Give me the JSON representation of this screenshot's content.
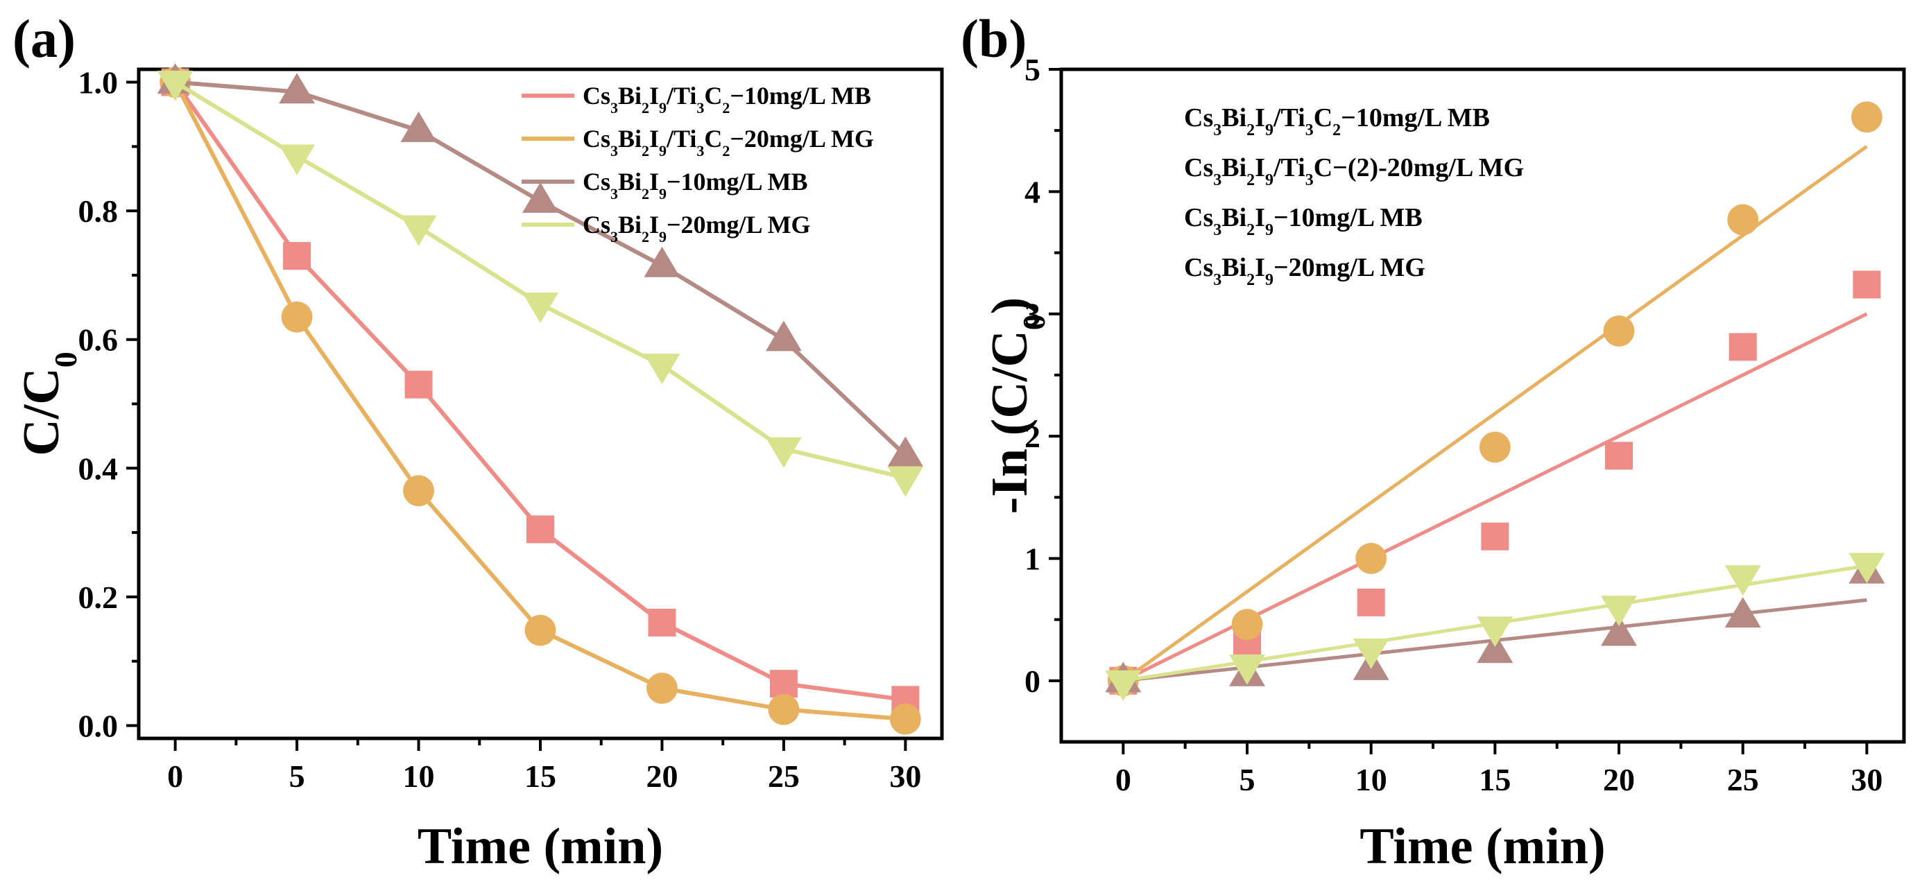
{
  "colors": {
    "pink": "#F08C88",
    "orange": "#E8B15F",
    "brown": "#B58A84",
    "lime": "#D9E28C"
  },
  "chart_data": [
    {
      "panel_label": "(a)",
      "type": "line",
      "xlabel": "Time (min)",
      "ylabel": "C/C0",
      "ylabel_main": "C/C",
      "ylabel_sub": "0",
      "xlim": [
        -1.5,
        31.5
      ],
      "ylim": [
        -0.02,
        1.02
      ],
      "xticks": [
        0,
        5,
        10,
        15,
        20,
        25,
        30
      ],
      "yticks": [
        0.0,
        0.2,
        0.4,
        0.6,
        0.8,
        1.0
      ],
      "ytick_labels": [
        "0.0",
        "0.2",
        "0.4",
        "0.6",
        "0.8",
        "1.0"
      ],
      "x": [
        0,
        5,
        10,
        15,
        20,
        25,
        30
      ],
      "legend_position": "top-right",
      "series": [
        {
          "name": "Cs3Bi2I9/Ti3C2−10mg/L MB",
          "legend_parts": [
            [
              "Cs",
              "n"
            ],
            [
              "3",
              "s"
            ],
            [
              "Bi",
              "n"
            ],
            [
              "2",
              "s"
            ],
            [
              "I",
              "n"
            ],
            [
              "9",
              "s"
            ],
            [
              "/Ti",
              "n"
            ],
            [
              "3",
              "s"
            ],
            [
              "C",
              "n"
            ],
            [
              "2",
              "s"
            ],
            [
              "−10mg/L MB",
              "n"
            ]
          ],
          "marker": "square",
          "color_key": "pink",
          "values": [
            1.0,
            0.73,
            0.53,
            0.305,
            0.16,
            0.065,
            0.04
          ]
        },
        {
          "name": "Cs3Bi2I9/Ti3C2−20mg/L MG",
          "legend_parts": [
            [
              "Cs",
              "n"
            ],
            [
              "3",
              "s"
            ],
            [
              "Bi",
              "n"
            ],
            [
              "2",
              "s"
            ],
            [
              "I",
              "n"
            ],
            [
              "9",
              "s"
            ],
            [
              "/Ti",
              "n"
            ],
            [
              "3",
              "s"
            ],
            [
              "C",
              "n"
            ],
            [
              "2",
              "s"
            ],
            [
              "−20mg/L MG",
              "n"
            ]
          ],
          "marker": "circle",
          "color_key": "orange",
          "values": [
            1.0,
            0.635,
            0.365,
            0.148,
            0.058,
            0.025,
            0.01
          ]
        },
        {
          "name": "Cs3Bi2I9−10mg/L MB",
          "legend_parts": [
            [
              "Cs",
              "n"
            ],
            [
              "3",
              "s"
            ],
            [
              "Bi",
              "n"
            ],
            [
              "2",
              "s"
            ],
            [
              "I",
              "n"
            ],
            [
              "9",
              "s"
            ],
            [
              "−10mg/L MB",
              "n"
            ]
          ],
          "marker": "triangle-up",
          "color_key": "brown",
          "values": [
            1.0,
            0.985,
            0.925,
            0.815,
            0.715,
            0.6,
            0.42
          ]
        },
        {
          "name": "Cs3Bi2I9−20mg/L MG",
          "legend_parts": [
            [
              "Cs",
              "n"
            ],
            [
              "3",
              "s"
            ],
            [
              "Bi",
              "n"
            ],
            [
              "2",
              "s"
            ],
            [
              "I",
              "n"
            ],
            [
              "9",
              "s"
            ],
            [
              "−20mg/L MG",
              "n"
            ]
          ],
          "marker": "triangle-down",
          "color_key": "lime",
          "values": [
            1.0,
            0.885,
            0.775,
            0.655,
            0.56,
            0.43,
            0.385
          ]
        }
      ]
    },
    {
      "panel_label": "(b)",
      "type": "scatter",
      "xlabel": "Time (min)",
      "ylabel": "-In (C/C0)",
      "ylabel_main": "-In (C/C",
      "ylabel_sub": "0",
      "ylabel_close": ")",
      "xlim": [
        -2.5,
        31.5
      ],
      "ylim": [
        -0.5,
        5.0
      ],
      "xticks": [
        0,
        5,
        10,
        15,
        20,
        25,
        30
      ],
      "yticks": [
        0,
        1,
        2,
        3,
        4,
        5
      ],
      "ytick_labels": [
        "0",
        "1",
        "2",
        "3",
        "4",
        "5"
      ],
      "x": [
        0,
        5,
        10,
        15,
        20,
        25,
        30
      ],
      "legend_position": "top-left",
      "series": [
        {
          "name": "Cs3Bi2I9/Ti3C2−10mg/L MB",
          "legend_parts": [
            [
              "Cs",
              "n"
            ],
            [
              "3",
              "s"
            ],
            [
              "Bi",
              "n"
            ],
            [
              "2",
              "s"
            ],
            [
              "I",
              "n"
            ],
            [
              "9",
              "s"
            ],
            [
              "/Ti",
              "n"
            ],
            [
              "3",
              "s"
            ],
            [
              "C",
              "n"
            ],
            [
              "2",
              "s"
            ],
            [
              "−10mg/L MB",
              "n"
            ]
          ],
          "marker": "square",
          "color_key": "pink",
          "values": [
            0.0,
            0.32,
            0.64,
            1.18,
            1.84,
            2.73,
            3.24
          ],
          "fit": [
            0.0,
            3.0
          ]
        },
        {
          "name": "Cs3Bi2I9/Ti3C−(2)-20mg/L MG",
          "legend_parts": [
            [
              "Cs",
              "n"
            ],
            [
              "3",
              "s"
            ],
            [
              "Bi",
              "n"
            ],
            [
              "2",
              "s"
            ],
            [
              "I",
              "n"
            ],
            [
              "9",
              "s"
            ],
            [
              "/Ti",
              "n"
            ],
            [
              "3",
              "s"
            ],
            [
              "C−(2)-20mg/L MG",
              "n"
            ]
          ],
          "marker": "circle",
          "color_key": "orange",
          "values": [
            0.0,
            0.46,
            1.0,
            1.91,
            2.86,
            3.77,
            4.61
          ],
          "fit": [
            0.0,
            4.37
          ]
        },
        {
          "name": "Cs3Bi2I9−10mg/L MB",
          "legend_parts": [
            [
              "Cs",
              "n"
            ],
            [
              "3",
              "s"
            ],
            [
              "Bi",
              "n"
            ],
            [
              "2",
              "s"
            ],
            [
              "I",
              "n"
            ],
            [
              "9",
              "s"
            ],
            [
              "−10mg/L MB",
              "n"
            ]
          ],
          "marker": "triangle-up",
          "color_key": "brown",
          "values": [
            0.0,
            0.05,
            0.1,
            0.24,
            0.38,
            0.53,
            0.89
          ],
          "fit": [
            0.0,
            0.66
          ]
        },
        {
          "name": "Cs3Bi2I9−20mg/L MG",
          "legend_parts": [
            [
              "Cs",
              "n"
            ],
            [
              "3",
              "s"
            ],
            [
              "Bi",
              "n"
            ],
            [
              "2",
              "s"
            ],
            [
              "I",
              "n"
            ],
            [
              "9",
              "s"
            ],
            [
              "−20mg/L MG",
              "n"
            ]
          ],
          "marker": "triangle-down",
          "color_key": "lime",
          "values": [
            -0.01,
            0.12,
            0.25,
            0.43,
            0.6,
            0.85,
            0.95
          ],
          "fit": [
            0.0,
            0.94
          ]
        }
      ]
    }
  ]
}
